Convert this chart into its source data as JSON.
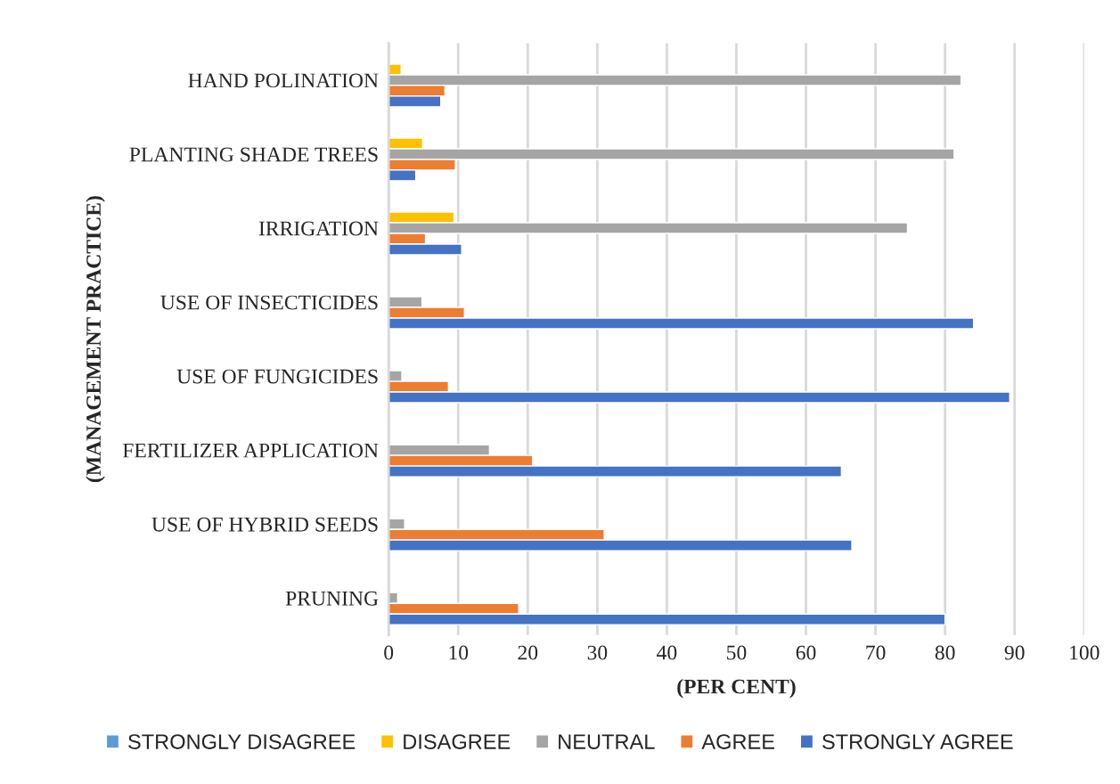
{
  "chart_data": {
    "type": "bar",
    "orientation": "horizontal",
    "xlabel": "(PER CENT)",
    "ylabel": "(MANAGEMENT PRACTICE)",
    "categories": [
      "HAND POLINATION",
      "PLANTING SHADE TREES",
      "IRRIGATION",
      "USE OF INSECTICIDES",
      "USE OF FUNGICIDES",
      "FERTILIZER APPLICATION",
      "USE OF HYBRID SEEDS",
      "PRUNING"
    ],
    "series": [
      {
        "name": "STRONGLY DISAGREE",
        "color": "#5b9bd5",
        "values": [
          null,
          null,
          null,
          null,
          null,
          null,
          null,
          null
        ]
      },
      {
        "name": "DISAGREE",
        "color": "#ffc000",
        "values": [
          1.8,
          4.9,
          9.4,
          null,
          null,
          null,
          null,
          null
        ]
      },
      {
        "name": "NEUTRAL",
        "color": "#a5a5a5",
        "values": [
          82.3,
          81.3,
          74.6,
          4.8,
          1.9,
          14.5,
          2.3,
          1.3
        ]
      },
      {
        "name": "AGREE",
        "color": "#ed7d31",
        "values": [
          8.1,
          9.6,
          5.3,
          10.9,
          8.6,
          20.7,
          31.0,
          18.7
        ]
      },
      {
        "name": "STRONGLY AGREE",
        "color": "#4472c4",
        "values": [
          7.5,
          3.9,
          10.5,
          84.1,
          89.3,
          65.1,
          66.6,
          80.0
        ]
      }
    ],
    "xlim": [
      0,
      100
    ],
    "xticks": [
      0,
      10,
      20,
      30,
      40,
      50,
      60,
      70,
      80,
      90,
      100
    ],
    "grid": "x",
    "legend": "bottom"
  }
}
